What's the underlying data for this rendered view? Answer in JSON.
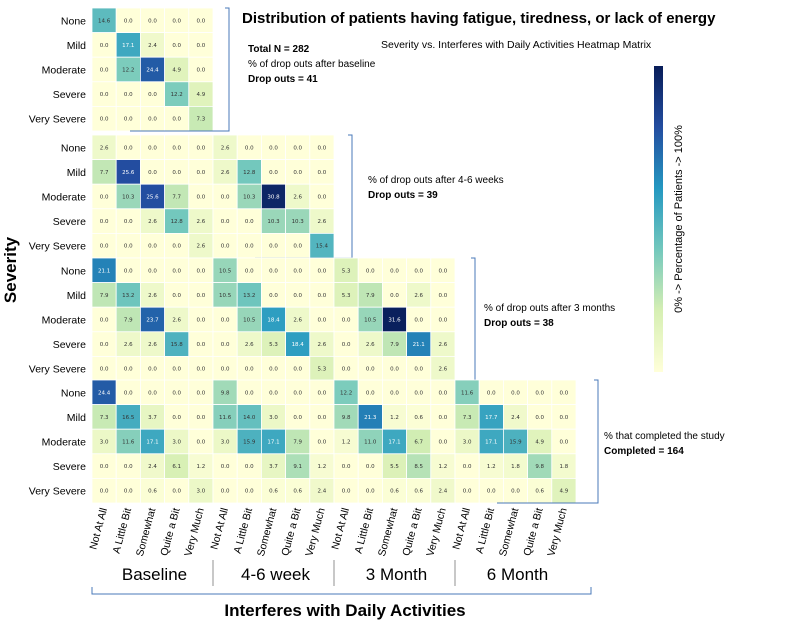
{
  "chart_data": {
    "type": "heatmap",
    "title": "Distribution of patients having fatigue, tiredness, or lack of energy",
    "subtitle": "Severity vs. Interferes with Daily Activities Heatmap Matrix",
    "xlabel": "Interferes with Daily Activities",
    "ylabel": "Severity",
    "colorbar_label": "0% -> Percentage of Patients -> 100%",
    "severity_levels": [
      "None",
      "Mild",
      "Moderate",
      "Severe",
      "Very Severe"
    ],
    "interference_levels": [
      "Not At All",
      "A Little Bit",
      "Somewhat",
      "Quite a Bit",
      "Very Much"
    ],
    "timepoints": [
      "Baseline",
      "4-6 week",
      "3 Month",
      "6 Month"
    ],
    "panels": [
      {
        "annotation": [
          "Total N = 282",
          "% of drop outs after baseline",
          "Drop outs = 41"
        ],
        "cells": [
          [
            [
              "14.6",
              "0.0",
              "0.0",
              "0.0",
              "0.0"
            ],
            [
              "0.0",
              "17.1",
              "2.4",
              "0.0",
              "0.0"
            ],
            [
              "0.0",
              "12.2",
              "24.4",
              "4.9",
              "0.0"
            ],
            [
              "0.0",
              "0.0",
              "0.0",
              "12.2",
              "4.9"
            ],
            [
              "0.0",
              "0.0",
              "0.0",
              "0.0",
              "7.3"
            ]
          ]
        ]
      },
      {
        "annotation": [
          "% of drop outs after 4-6 weeks",
          "Drop outs = 39"
        ],
        "cells": [
          [
            [
              "2.6",
              "0.0",
              "0.0",
              "0.0",
              "0.0"
            ],
            [
              "7.7",
              "25.6",
              "0.0",
              "0.0",
              "0.0"
            ],
            [
              "0.0",
              "10.3",
              "25.6",
              "7.7",
              "0.0"
            ],
            [
              "0.0",
              "0.0",
              "2.6",
              "12.8",
              "2.6"
            ],
            [
              "0.0",
              "0.0",
              "0.0",
              "0.0",
              "2.6"
            ]
          ],
          [
            [
              "2.6",
              "0.0",
              "0.0",
              "0.0",
              "0.0"
            ],
            [
              "2.6",
              "12.8",
              "0.0",
              "0.0",
              "0.0"
            ],
            [
              "0.0",
              "10.3",
              "30.8",
              "2.6",
              "0.0"
            ],
            [
              "0.0",
              "0.0",
              "10.3",
              "10.3",
              "2.6"
            ],
            [
              "0.0",
              "0.0",
              "0.0",
              "0.0",
              "15.4"
            ]
          ]
        ]
      },
      {
        "annotation": [
          "% of drop outs after 3 months",
          "Drop outs = 38"
        ],
        "cells": [
          [
            [
              "21.1",
              "0.0",
              "0.0",
              "0.0",
              "0.0"
            ],
            [
              "7.9",
              "13.2",
              "2.6",
              "0.0",
              "0.0"
            ],
            [
              "0.0",
              "7.9",
              "23.7",
              "2.6",
              "0.0"
            ],
            [
              "0.0",
              "2.6",
              "2.6",
              "15.8",
              "0.0"
            ],
            [
              "0.0",
              "0.0",
              "0.0",
              "0.0",
              "0.0"
            ]
          ],
          [
            [
              "10.5",
              "0.0",
              "0.0",
              "0.0",
              "0.0"
            ],
            [
              "10.5",
              "13.2",
              "0.0",
              "0.0",
              "0.0"
            ],
            [
              "0.0",
              "10.5",
              "18.4",
              "2.6",
              "0.0"
            ],
            [
              "0.0",
              "2.6",
              "5.3",
              "18.4",
              "2.6"
            ],
            [
              "0.0",
              "0.0",
              "0.0",
              "0.0",
              "5.3"
            ]
          ],
          [
            [
              "5.3",
              "0.0",
              "0.0",
              "0.0",
              "0.0"
            ],
            [
              "5.3",
              "7.9",
              "0.0",
              "2.6",
              "0.0"
            ],
            [
              "0.0",
              "10.5",
              "31.6",
              "0.0",
              "0.0"
            ],
            [
              "0.0",
              "2.6",
              "7.9",
              "21.1",
              "2.6"
            ],
            [
              "0.0",
              "0.0",
              "0.0",
              "0.0",
              "2.6"
            ]
          ]
        ]
      },
      {
        "annotation": [
          "% that completed the study",
          "Completed = 164"
        ],
        "cells": [
          [
            [
              "24.4",
              "0.0",
              "0.0",
              "0.0",
              "0.0"
            ],
            [
              "7.3",
              "16.5",
              "3.7",
              "0.0",
              "0.0"
            ],
            [
              "3.0",
              "11.6",
              "17.1",
              "3.0",
              "0.0"
            ],
            [
              "0.0",
              "0.0",
              "2.4",
              "6.1",
              "1.2"
            ],
            [
              "0.0",
              "0.0",
              "0.6",
              "0.0",
              "3.0"
            ]
          ],
          [
            [
              "9.8",
              "0.0",
              "0.0",
              "0.0",
              "0.0"
            ],
            [
              "11.6",
              "14.0",
              "3.0",
              "0.0",
              "0.0"
            ],
            [
              "3.0",
              "15.9",
              "17.1",
              "7.9",
              "0.0"
            ],
            [
              "0.0",
              "0.0",
              "3.7",
              "9.1",
              "1.2"
            ],
            [
              "0.0",
              "0.0",
              "0.6",
              "0.6",
              "2.4"
            ]
          ],
          [
            [
              "12.2",
              "0.0",
              "0.0",
              "0.0",
              "0.0"
            ],
            [
              "9.8",
              "21.3",
              "1.2",
              "0.6",
              "0.0"
            ],
            [
              "1.2",
              "11.0",
              "17.1",
              "6.7",
              "0.0"
            ],
            [
              "0.0",
              "0.0",
              "5.5",
              "8.5",
              "1.2"
            ],
            [
              "0.0",
              "0.0",
              "0.6",
              "0.6",
              "2.4"
            ]
          ],
          [
            [
              "11.6",
              "0.0",
              "0.0",
              "0.0",
              "0.0"
            ],
            [
              "7.3",
              "17.7",
              "2.4",
              "0.0",
              "0.0"
            ],
            [
              "3.0",
              "17.1",
              "15.9",
              "4.9",
              "0.0"
            ],
            [
              "0.0",
              "1.2",
              "1.8",
              "9.8",
              "1.8"
            ],
            [
              "0.0",
              "0.0",
              "0.0",
              "0.6",
              "4.9"
            ]
          ]
        ]
      }
    ],
    "color_scale_max": 32,
    "colors": [
      "#ffffd9",
      "#d6efb3",
      "#73c8bd",
      "#2498c1",
      "#234da0",
      "#081d58"
    ],
    "bracket_color": "#4a78b8"
  }
}
